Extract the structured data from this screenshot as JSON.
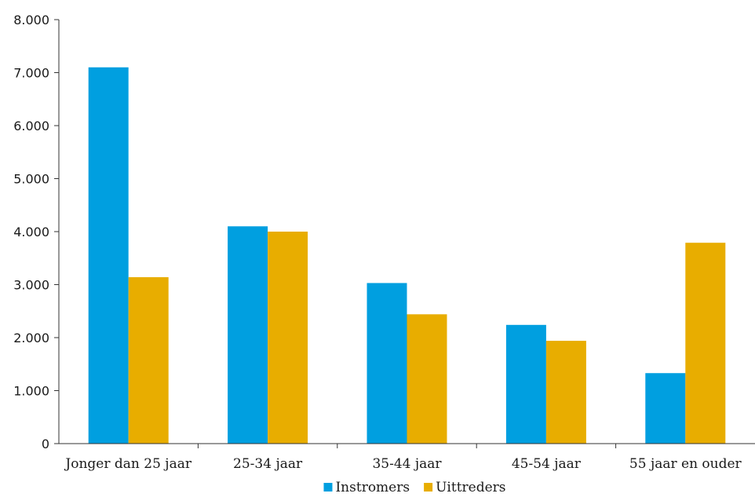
{
  "chart_data": {
    "type": "bar",
    "title": "",
    "xlabel": "",
    "ylabel": "",
    "categories": [
      "Jonger dan 25 jaar",
      "25-34 jaar",
      "35-44 jaar",
      "45-54 jaar",
      "55 jaar en ouder"
    ],
    "series": [
      {
        "name": "Instromers",
        "color": "#009fe0",
        "values": [
          7100,
          4100,
          3030,
          2240,
          1330
        ]
      },
      {
        "name": "Uittreders",
        "color": "#e8ad00",
        "values": [
          3140,
          4000,
          2440,
          1940,
          3790
        ]
      }
    ],
    "ylim": [
      0,
      8000
    ],
    "yticks": [
      0,
      1000,
      2000,
      3000,
      4000,
      5000,
      6000,
      7000,
      8000
    ],
    "ytick_labels": [
      "0",
      "1.000",
      "2.000",
      "3.000",
      "4.000",
      "5.000",
      "6.000",
      "7.000",
      "8.000"
    ],
    "grid": false,
    "legend": "bottom"
  }
}
